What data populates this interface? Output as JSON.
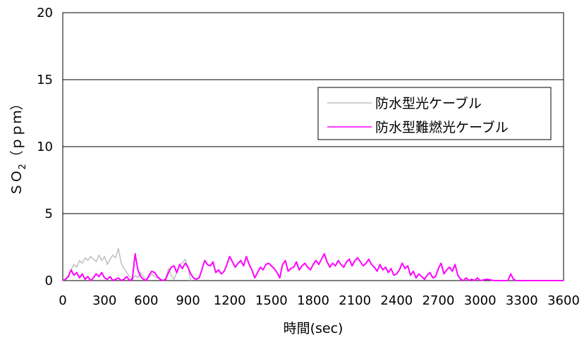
{
  "chart_data": {
    "type": "line",
    "xlabel": "時間(sec)",
    "ylabel": "ＳＯ",
    "ylabel_subscript": "2",
    "ylabel_suffix": "（ｐｐｍ）",
    "xlim": [
      0,
      3600
    ],
    "ylim": [
      0,
      20
    ],
    "x_ticks": [
      "0",
      "300",
      "600",
      "900",
      "1200",
      "1500",
      "1800",
      "2100",
      "2400",
      "2700",
      "3000",
      "3300",
      "3600"
    ],
    "y_ticks": [
      "0",
      "5",
      "10",
      "15",
      "20"
    ],
    "grid": "horizontal",
    "legend_position": "right",
    "series": [
      {
        "name": "防水型光ケーブル",
        "color": "#bfbfbf",
        "x": [
          0,
          20,
          40,
          60,
          80,
          100,
          120,
          140,
          160,
          180,
          200,
          220,
          240,
          260,
          280,
          300,
          320,
          340,
          360,
          380,
          400,
          420,
          440,
          460,
          480,
          500,
          520,
          540,
          560,
          580,
          600,
          620,
          640,
          660,
          680,
          700,
          720,
          740,
          760,
          780,
          800,
          820,
          840,
          860,
          880,
          900,
          920
        ],
        "y": [
          0,
          0.1,
          0.4,
          0.8,
          1.2,
          1.0,
          1.5,
          1.3,
          1.7,
          1.5,
          1.8,
          1.6,
          1.4,
          1.9,
          1.5,
          1.8,
          1.2,
          1.6,
          1.9,
          1.7,
          2.4,
          1.3,
          0.9,
          0.6,
          0.3,
          0.1,
          0.4,
          0.2,
          0.6,
          0.3,
          0.1,
          0.2,
          0.5,
          0.3,
          0.2,
          0.1,
          0.0,
          0.2,
          0.9,
          0.4,
          0.1,
          0.6,
          1.2,
          1.3,
          1.6,
          1.0,
          0.0
        ]
      },
      {
        "name": "防水型難燃光ケーブル",
        "color": "#ff00ff",
        "x": [
          0,
          20,
          40,
          60,
          80,
          100,
          120,
          140,
          160,
          180,
          200,
          220,
          240,
          260,
          280,
          300,
          320,
          340,
          360,
          380,
          400,
          420,
          440,
          460,
          480,
          500,
          520,
          540,
          560,
          580,
          600,
          620,
          640,
          660,
          680,
          700,
          720,
          740,
          760,
          780,
          800,
          820,
          840,
          860,
          880,
          900,
          920,
          940,
          960,
          980,
          1000,
          1020,
          1040,
          1060,
          1080,
          1100,
          1120,
          1140,
          1160,
          1180,
          1200,
          1220,
          1240,
          1260,
          1280,
          1300,
          1320,
          1340,
          1360,
          1380,
          1400,
          1420,
          1440,
          1460,
          1480,
          1500,
          1520,
          1540,
          1560,
          1580,
          1600,
          1620,
          1640,
          1660,
          1680,
          1700,
          1720,
          1740,
          1760,
          1780,
          1800,
          1820,
          1840,
          1860,
          1880,
          1900,
          1920,
          1940,
          1960,
          1980,
          2000,
          2020,
          2040,
          2060,
          2080,
          2100,
          2120,
          2140,
          2160,
          2180,
          2200,
          2220,
          2240,
          2260,
          2280,
          2300,
          2320,
          2340,
          2360,
          2380,
          2400,
          2420,
          2440,
          2460,
          2480,
          2500,
          2520,
          2540,
          2560,
          2580,
          2600,
          2620,
          2640,
          2660,
          2680,
          2700,
          2720,
          2740,
          2760,
          2780,
          2800,
          2820,
          2840,
          2860,
          2880,
          2900,
          2920,
          2940,
          2960,
          2980,
          3000,
          3050,
          3100,
          3150,
          3200,
          3220,
          3240,
          3260,
          3300,
          3400,
          3500,
          3600
        ],
        "y": [
          0,
          0.1,
          0.3,
          0.8,
          0.4,
          0.6,
          0.2,
          0.5,
          0.1,
          0.3,
          0.0,
          0.2,
          0.5,
          0.3,
          0.6,
          0.2,
          0.1,
          0.3,
          0.0,
          0.1,
          0.2,
          0.0,
          0.1,
          0.3,
          0.0,
          0.1,
          2.0,
          0.8,
          0.3,
          0.1,
          0.0,
          0.4,
          0.7,
          0.6,
          0.3,
          0.1,
          0.0,
          0.1,
          0.6,
          1.0,
          1.1,
          0.6,
          1.2,
          0.9,
          1.3,
          1.0,
          0.5,
          0.2,
          0.1,
          0.2,
          0.8,
          1.5,
          1.2,
          1.1,
          1.4,
          0.6,
          0.8,
          0.5,
          0.7,
          1.2,
          1.8,
          1.4,
          1.0,
          1.3,
          1.5,
          1.1,
          1.8,
          1.2,
          0.8,
          0.2,
          0.6,
          1.0,
          0.8,
          1.2,
          1.3,
          1.1,
          0.9,
          0.6,
          0.2,
          1.2,
          1.5,
          0.7,
          0.9,
          1.0,
          1.4,
          0.8,
          1.1,
          1.3,
          1.0,
          0.8,
          1.2,
          1.5,
          1.2,
          1.6,
          2.0,
          1.4,
          1.0,
          1.3,
          1.1,
          1.5,
          1.2,
          1.0,
          1.4,
          1.6,
          1.1,
          1.5,
          1.7,
          1.4,
          1.1,
          1.3,
          1.6,
          1.2,
          1.0,
          0.7,
          1.2,
          0.8,
          1.0,
          0.6,
          0.9,
          0.4,
          0.5,
          0.8,
          1.3,
          0.9,
          1.1,
          0.4,
          0.7,
          0.2,
          0.5,
          0.3,
          0.1,
          0.4,
          0.6,
          0.2,
          0.3,
          0.9,
          1.3,
          0.5,
          0.8,
          1.0,
          0.7,
          1.2,
          0.4,
          0.1,
          0.0,
          0.2,
          0.0,
          0.1,
          0.0,
          0.2,
          0.0,
          0.1,
          0.0,
          0.0,
          0.0,
          0.5,
          0.1,
          0.0,
          0.0,
          0.0,
          0.0,
          0.0
        ]
      }
    ]
  }
}
